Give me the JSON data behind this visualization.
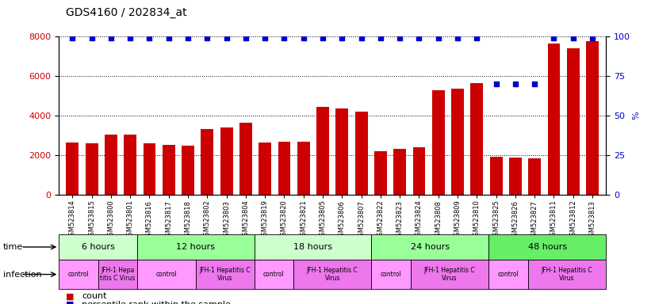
{
  "title": "GDS4160 / 202834_at",
  "samples": [
    "GSM523814",
    "GSM523815",
    "GSM523800",
    "GSM523801",
    "GSM523816",
    "GSM523817",
    "GSM523818",
    "GSM523802",
    "GSM523803",
    "GSM523804",
    "GSM523819",
    "GSM523820",
    "GSM523821",
    "GSM523805",
    "GSM523806",
    "GSM523807",
    "GSM523822",
    "GSM523823",
    "GSM523824",
    "GSM523808",
    "GSM523809",
    "GSM523810",
    "GSM523825",
    "GSM523826",
    "GSM523827",
    "GSM523811",
    "GSM523812",
    "GSM523813"
  ],
  "counts": [
    2650,
    2580,
    3050,
    3030,
    2600,
    2500,
    2480,
    3300,
    3400,
    3620,
    2630,
    2680,
    2660,
    4430,
    4360,
    4180,
    2180,
    2320,
    2410,
    5280,
    5350,
    5620,
    1930,
    1870,
    1820,
    7650,
    7400,
    7780
  ],
  "percentile": [
    99,
    99,
    99,
    99,
    99,
    99,
    99,
    99,
    99,
    99,
    99,
    99,
    99,
    99,
    99,
    99,
    99,
    99,
    99,
    99,
    99,
    99,
    70,
    70,
    70,
    99,
    99,
    99
  ],
  "bar_color": "#cc0000",
  "dot_color": "#0000cc",
  "ylim_left": [
    0,
    8000
  ],
  "ylim_right": [
    0,
    100
  ],
  "yticks_left": [
    0,
    2000,
    4000,
    6000,
    8000
  ],
  "yticks_right": [
    0,
    25,
    50,
    75,
    100
  ],
  "time_groups": [
    {
      "label": "6 hours",
      "start": 0,
      "end": 4,
      "color": "#ccffcc"
    },
    {
      "label": "12 hours",
      "start": 4,
      "end": 10,
      "color": "#99ff99"
    },
    {
      "label": "18 hours",
      "start": 10,
      "end": 16,
      "color": "#ccffcc"
    },
    {
      "label": "24 hours",
      "start": 16,
      "end": 22,
      "color": "#99ff99"
    },
    {
      "label": "48 hours",
      "start": 22,
      "end": 28,
      "color": "#66ee66"
    }
  ],
  "infection_groups": [
    {
      "label": "control",
      "start": 0,
      "end": 2,
      "color": "#ff99ff"
    },
    {
      "label": "JFH-1 Hepa\ntitis C Virus",
      "start": 2,
      "end": 4,
      "color": "#ee77ee"
    },
    {
      "label": "control",
      "start": 4,
      "end": 7,
      "color": "#ff99ff"
    },
    {
      "label": "JFH-1 Hepatitis C\nVirus",
      "start": 7,
      "end": 10,
      "color": "#ee77ee"
    },
    {
      "label": "control",
      "start": 10,
      "end": 12,
      "color": "#ff99ff"
    },
    {
      "label": "JFH-1 Hepatitis C\nVirus",
      "start": 12,
      "end": 16,
      "color": "#ee77ee"
    },
    {
      "label": "control",
      "start": 16,
      "end": 18,
      "color": "#ff99ff"
    },
    {
      "label": "JFH-1 Hepatitis C\nVirus",
      "start": 18,
      "end": 22,
      "color": "#ee77ee"
    },
    {
      "label": "control",
      "start": 22,
      "end": 24,
      "color": "#ff99ff"
    },
    {
      "label": "JFH-1 Hepatitis C\nVirus",
      "start": 24,
      "end": 28,
      "color": "#ee77ee"
    }
  ],
  "time_label": "time",
  "infection_label": "infection",
  "legend_count_color": "#cc0000",
  "legend_dot_color": "#0000cc",
  "background_color": "#ffffff",
  "tick_label_color_left": "#cc0000",
  "tick_label_color_right": "#0000cc"
}
